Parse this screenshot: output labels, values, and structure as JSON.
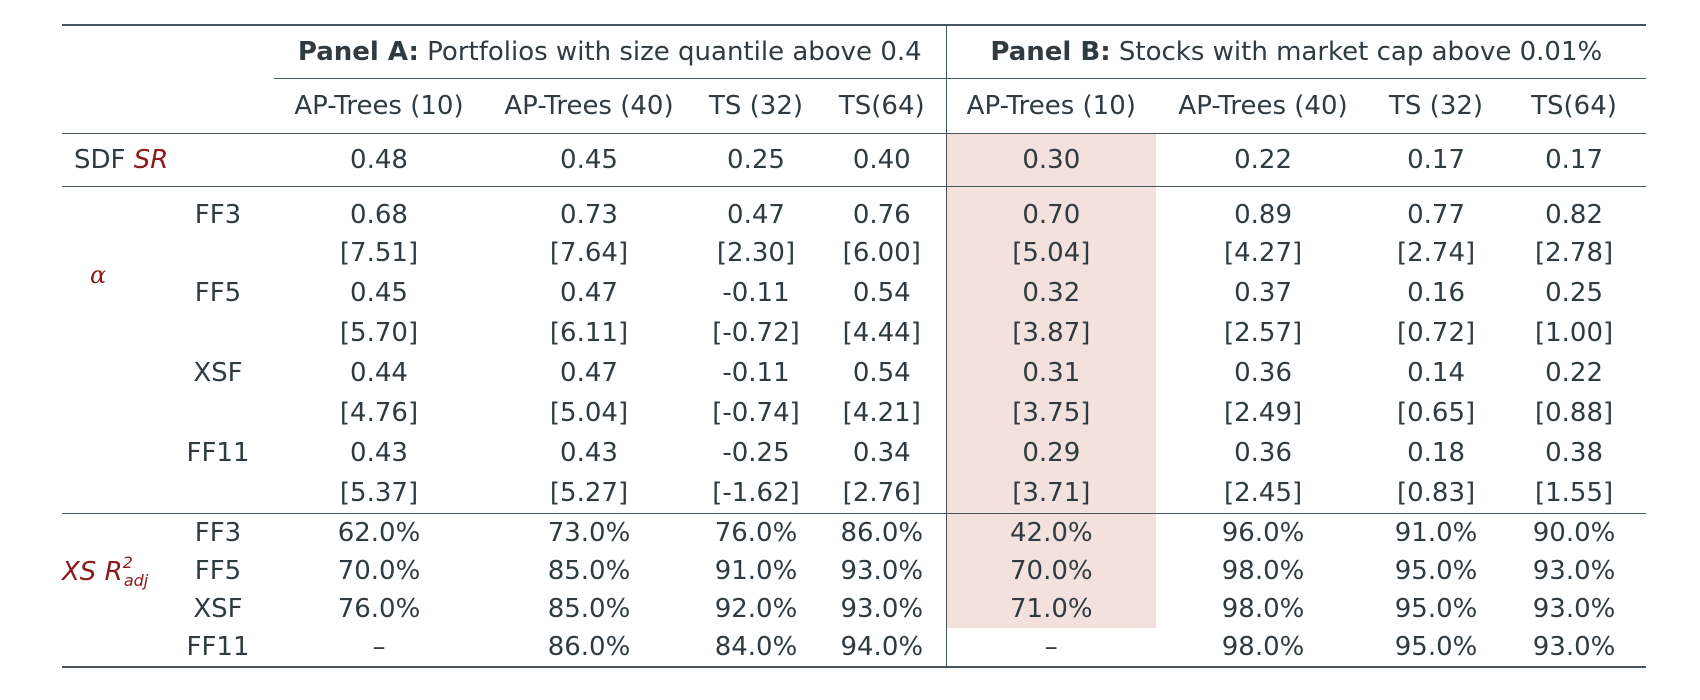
{
  "panels": {
    "a_bold": "Panel A:",
    "a_text": "Portfolios with size quantile above 0.4",
    "b_bold": "Panel B:",
    "b_text": "Stocks with market cap above 0.01%"
  },
  "columns": [
    "AP-Trees (10)",
    "AP-Trees (40)",
    "TS (32)",
    "TS(64)",
    "AP-Trees (10)",
    "AP-Trees (40)",
    "TS (32)",
    "TS(64)"
  ],
  "sdf": {
    "label_prefix": "SDF",
    "label_italic": "SR",
    "values": [
      "0.48",
      "0.45",
      "0.25",
      "0.40",
      "0.30",
      "0.22",
      "0.17",
      "0.17"
    ]
  },
  "alpha": {
    "label": "α",
    "rows": [
      {
        "sub": "FF3",
        "values": [
          "0.68",
          "0.73",
          "0.47",
          "0.76",
          "0.70",
          "0.89",
          "0.77",
          "0.82"
        ]
      },
      {
        "sub": "",
        "values": [
          "[7.51]",
          "[7.64]",
          "[2.30]",
          "[6.00]",
          "[5.04]",
          "[4.27]",
          "[2.74]",
          "[2.78]"
        ]
      },
      {
        "sub": "FF5",
        "values": [
          "0.45",
          "0.47",
          "-0.11",
          "0.54",
          "0.32",
          "0.37",
          "0.16",
          "0.25"
        ]
      },
      {
        "sub": "",
        "values": [
          "[5.70]",
          "[6.11]",
          "[-0.72]",
          "[4.44]",
          "[3.87]",
          "[2.57]",
          "[0.72]",
          "[1.00]"
        ]
      },
      {
        "sub": "XSF",
        "values": [
          "0.44",
          "0.47",
          "-0.11",
          "0.54",
          "0.31",
          "0.36",
          "0.14",
          "0.22"
        ]
      },
      {
        "sub": "",
        "values": [
          "[4.76]",
          "[5.04]",
          "[-0.74]",
          "[4.21]",
          "[3.75]",
          "[2.49]",
          "[0.65]",
          "[0.88]"
        ]
      },
      {
        "sub": "FF11",
        "values": [
          "0.43",
          "0.43",
          "-0.25",
          "0.34",
          "0.29",
          "0.36",
          "0.18",
          "0.38"
        ]
      },
      {
        "sub": "",
        "values": [
          "[5.37]",
          "[5.27]",
          "[-1.62]",
          "[2.76]",
          "[3.71]",
          "[2.45]",
          "[0.83]",
          "[1.55]"
        ]
      }
    ]
  },
  "r2": {
    "label_main": "XS R",
    "label_sup": "2",
    "label_sub": "adj",
    "rows": [
      {
        "sub": "FF3",
        "values": [
          "62.0%",
          "73.0%",
          "76.0%",
          "86.0%",
          "42.0%",
          "96.0%",
          "91.0%",
          "90.0%"
        ]
      },
      {
        "sub": "FF5",
        "values": [
          "70.0%",
          "85.0%",
          "91.0%",
          "93.0%",
          "70.0%",
          "98.0%",
          "95.0%",
          "93.0%"
        ]
      },
      {
        "sub": "XSF",
        "values": [
          "76.0%",
          "85.0%",
          "92.0%",
          "93.0%",
          "71.0%",
          "98.0%",
          "95.0%",
          "93.0%"
        ]
      },
      {
        "sub": "FF11",
        "values": [
          "–",
          "86.0%",
          "84.0%",
          "94.0%",
          "–",
          "98.0%",
          "95.0%",
          "93.0%"
        ]
      }
    ]
  },
  "colors": {
    "text": "#2f3b40",
    "accent_red": "#8c1a1a",
    "highlight": "#f3e1de",
    "rule": "#46555b"
  }
}
